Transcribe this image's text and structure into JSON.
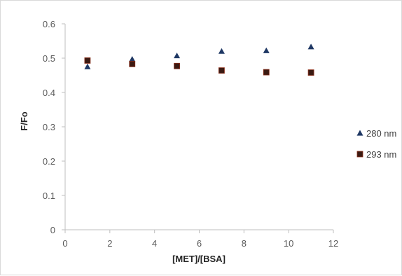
{
  "chart_data": {
    "type": "scatter",
    "title": "",
    "xlabel": "[MET]/[BSA]",
    "ylabel": "F/Fo",
    "xlim": [
      0,
      12
    ],
    "ylim": [
      0,
      0.6
    ],
    "x_ticks": [
      0,
      2,
      4,
      6,
      8,
      10,
      12
    ],
    "y_ticks": [
      0,
      0.1,
      0.2,
      0.3,
      0.4,
      0.5,
      0.6
    ],
    "x_tick_labels": [
      "0",
      "2",
      "4",
      "6",
      "8",
      "10",
      "12"
    ],
    "y_tick_labels": [
      "0",
      "0.1",
      "0.2",
      "0.3",
      "0.4",
      "0.5",
      "0.6"
    ],
    "grid": false,
    "legend_position": "right",
    "series": [
      {
        "name": "280 nm",
        "marker": "triangle",
        "color": "#1f3864",
        "x": [
          1,
          3,
          5,
          7,
          9,
          11
        ],
        "y": [
          0.475,
          0.497,
          0.507,
          0.52,
          0.522,
          0.533
        ]
      },
      {
        "name": "293 nm",
        "marker": "square",
        "color": "#3b1a12",
        "x": [
          1,
          3,
          5,
          7,
          9,
          11
        ],
        "y": [
          0.493,
          0.483,
          0.477,
          0.464,
          0.459,
          0.458
        ]
      }
    ]
  }
}
